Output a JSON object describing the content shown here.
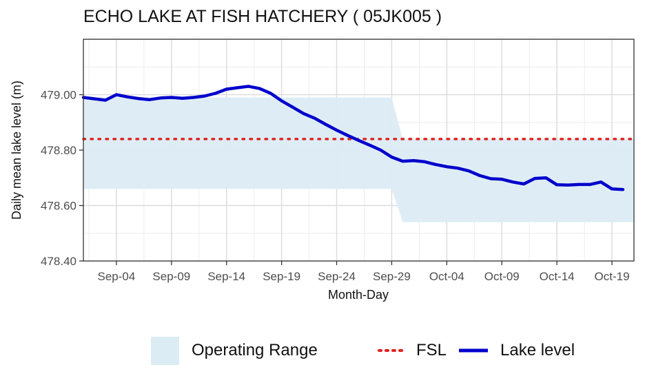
{
  "chart_data": {
    "type": "line",
    "title": "ECHO LAKE AT FISH HATCHERY ( 05JK005 )",
    "xlabel": "Month-Day",
    "ylabel": "Daily mean lake level (m)",
    "ylim": [
      478.4,
      479.2
    ],
    "xlim": [
      "2023-09-01",
      "2023-10-21"
    ],
    "x_ticks": [
      "Sep-04",
      "Sep-09",
      "Sep-14",
      "Sep-19",
      "Sep-24",
      "Sep-29",
      "Oct-04",
      "Oct-09",
      "Oct-14",
      "Oct-19"
    ],
    "y_ticks": [
      "478.40",
      "478.60",
      "478.80",
      "479.00"
    ],
    "grid": true,
    "legend_position": "bottom",
    "series": [
      {
        "name": "Lake level",
        "color": "#0000cc",
        "x": [
          "2023-09-01",
          "2023-09-02",
          "2023-09-03",
          "2023-09-04",
          "2023-09-05",
          "2023-09-06",
          "2023-09-07",
          "2023-09-08",
          "2023-09-09",
          "2023-09-10",
          "2023-09-11",
          "2023-09-12",
          "2023-09-13",
          "2023-09-14",
          "2023-09-15",
          "2023-09-16",
          "2023-09-17",
          "2023-09-18",
          "2023-09-19",
          "2023-09-20",
          "2023-09-21",
          "2023-09-22",
          "2023-09-23",
          "2023-09-24",
          "2023-09-25",
          "2023-09-26",
          "2023-09-27",
          "2023-09-28",
          "2023-09-29",
          "2023-09-30",
          "2023-10-01",
          "2023-10-02",
          "2023-10-03",
          "2023-10-04",
          "2023-10-05",
          "2023-10-06",
          "2023-10-07",
          "2023-10-08",
          "2023-10-09",
          "2023-10-10",
          "2023-10-11",
          "2023-10-12",
          "2023-10-13",
          "2023-10-14",
          "2023-10-15",
          "2023-10-16",
          "2023-10-17",
          "2023-10-18",
          "2023-10-19",
          "2023-10-20"
        ],
        "values": [
          478.99,
          478.985,
          478.98,
          479.0,
          478.992,
          478.986,
          478.982,
          478.988,
          478.99,
          478.987,
          478.99,
          478.995,
          479.005,
          479.02,
          479.025,
          479.03,
          479.022,
          479.005,
          478.978,
          478.955,
          478.932,
          478.915,
          478.893,
          478.872,
          478.853,
          478.835,
          478.818,
          478.8,
          478.775,
          478.76,
          478.762,
          478.758,
          478.748,
          478.74,
          478.735,
          478.725,
          478.708,
          478.697,
          478.695,
          478.685,
          478.678,
          478.698,
          478.7,
          478.675,
          478.674,
          478.676,
          478.676,
          478.685,
          478.66,
          478.658
        ]
      },
      {
        "name": "FSL",
        "color": "#dd2222",
        "value": 478.84
      }
    ],
    "operating_range": {
      "name": "Operating Range",
      "color": "#dcecf4",
      "segments": [
        {
          "from": "2023-09-01",
          "to": "2023-09-29",
          "low": 478.66,
          "high": 478.99
        },
        {
          "from": "2023-09-30",
          "to": "2023-10-21",
          "low": 478.54,
          "high": 478.84
        }
      ]
    }
  }
}
